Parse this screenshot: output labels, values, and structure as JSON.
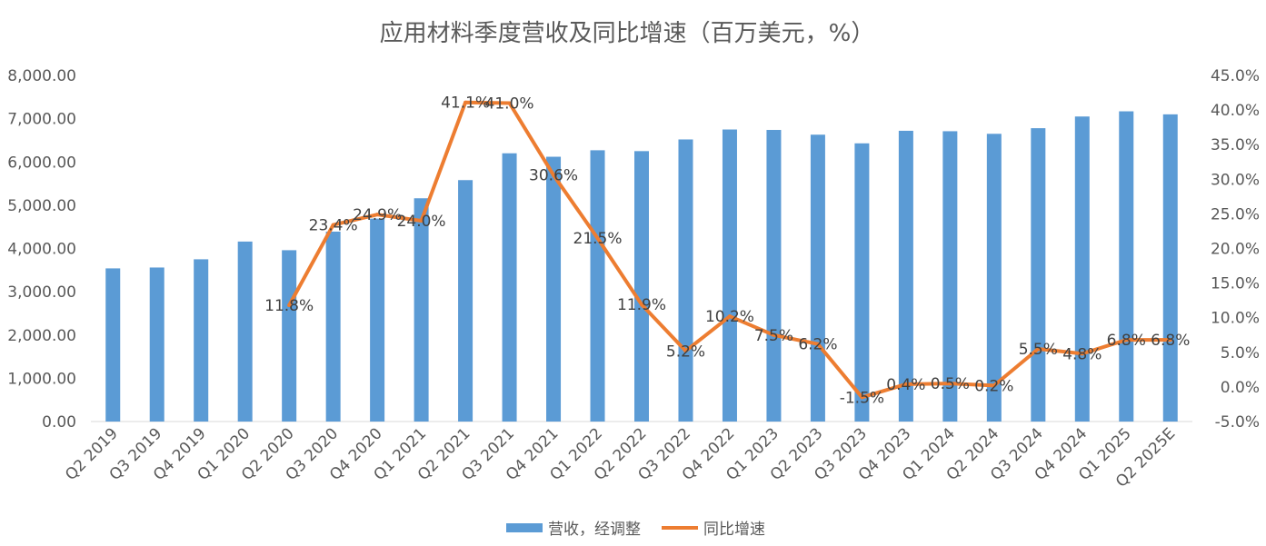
{
  "chart_data": {
    "type": "bar",
    "title": "应用材料季度营收及同比增速（百万美元，%）",
    "categories": [
      "Q2 2019",
      "Q3 2019",
      "Q4 2019",
      "Q1 2020",
      "Q2 2020",
      "Q3 2020",
      "Q4 2020",
      "Q1 2021",
      "Q2 2021",
      "Q3 2021",
      "Q4 2021",
      "Q1 2022",
      "Q2 2022",
      "Q3 2022",
      "Q4 2022",
      "Q1 2023",
      "Q2 2023",
      "Q3 2023",
      "Q4 2023",
      "Q1 2024",
      "Q2 2024",
      "Q3 2024",
      "Q4 2024",
      "Q1 2025",
      "Q2 2025E"
    ],
    "series": [
      {
        "name": "营收，经调整",
        "type": "bar",
        "axis": "left",
        "color": "#5b9bd5",
        "values": [
          3540,
          3560,
          3750,
          4160,
          3960,
          4390,
          4690,
          5160,
          5580,
          6200,
          6120,
          6270,
          6250,
          6520,
          6750,
          6740,
          6630,
          6430,
          6720,
          6710,
          6650,
          6780,
          7050,
          7170,
          7100
        ]
      },
      {
        "name": "同比增速",
        "type": "line",
        "axis": "right",
        "color": "#ed7d31",
        "values": [
          null,
          null,
          null,
          null,
          11.8,
          23.4,
          24.9,
          24.0,
          41.1,
          41.0,
          30.6,
          21.5,
          11.9,
          5.2,
          10.2,
          7.5,
          6.2,
          -1.5,
          0.4,
          0.5,
          0.2,
          5.5,
          4.8,
          6.8,
          6.8
        ],
        "labels": [
          "",
          "",
          "",
          "",
          "11.8%",
          "23.4%",
          "24.9%",
          "24.0%",
          "41.1%",
          "41.0%",
          "30.6%",
          "21.5%",
          "11.9%",
          "5.2%",
          "10.2%",
          "7.5%",
          "6.2%",
          "-1.5%",
          "0.4%",
          "0.5%",
          "0.2%",
          "5.5%",
          "4.8%",
          "6.8%",
          "6.8%"
        ]
      }
    ],
    "left_axis": {
      "ylim": [
        0,
        8000
      ],
      "ticks": [
        "0.00",
        "1,000.00",
        "2,000.00",
        "3,000.00",
        "4,000.00",
        "5,000.00",
        "6,000.00",
        "7,000.00",
        "8,000.00"
      ]
    },
    "right_axis": {
      "ylim": [
        -5,
        45
      ],
      "ticks": [
        "-5.0%",
        "0.0%",
        "5.0%",
        "10.0%",
        "15.0%",
        "20.0%",
        "25.0%",
        "30.0%",
        "35.0%",
        "40.0%",
        "45.0%"
      ]
    },
    "grid": false,
    "legend": "bottom"
  }
}
